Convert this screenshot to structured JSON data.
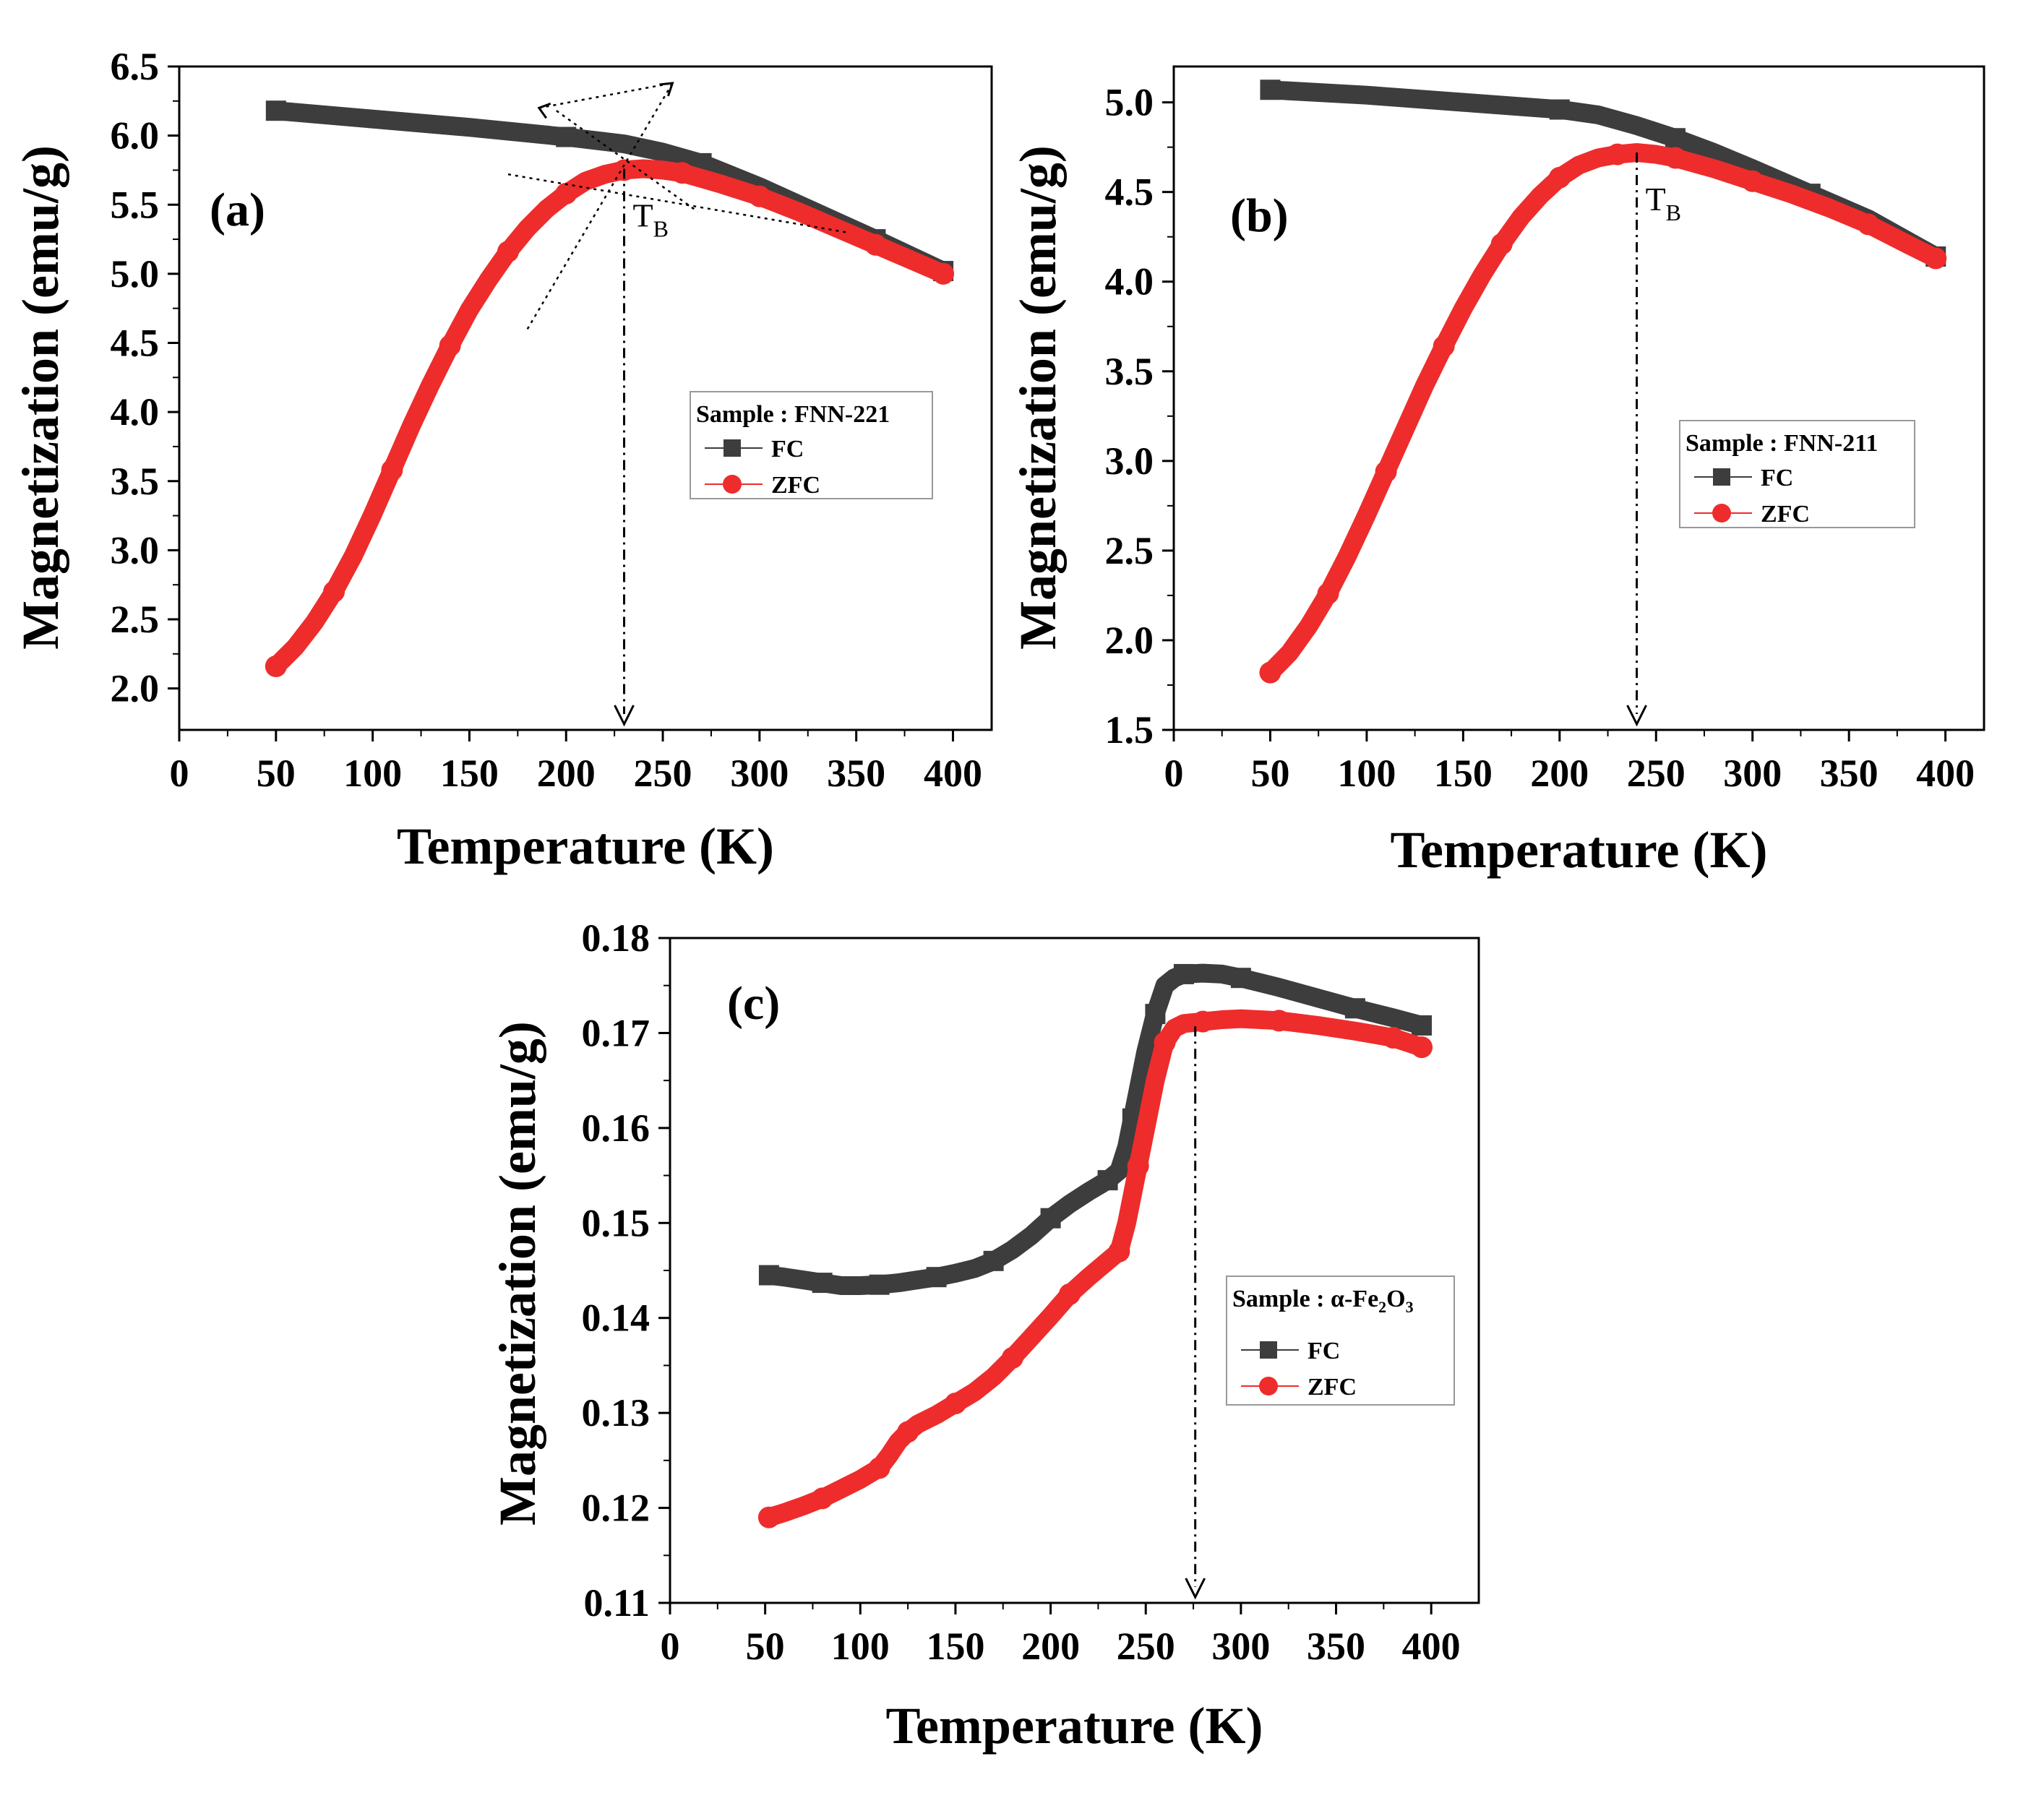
{
  "chart_data": [
    {
      "type": "scatter",
      "panel_label": "(a)",
      "xlabel": "Temperature (K)",
      "ylabel": "Magnetization (emu/g)",
      "xlim": [
        0,
        420
      ],
      "ylim": [
        1.7,
        6.5
      ],
      "xticks": [
        0,
        50,
        100,
        150,
        200,
        250,
        300,
        350,
        400
      ],
      "yticks": [
        2.0,
        2.5,
        3.0,
        3.5,
        4.0,
        4.5,
        5.0,
        5.5,
        6.0,
        6.5
      ],
      "ytick_decimals": 1,
      "legend": {
        "title": "Sample : FNN-221",
        "entries": [
          "FC",
          "ZFC"
        ],
        "position": "center-right"
      },
      "annotation": {
        "text_main": "T",
        "text_sub": "B",
        "x": 230
      },
      "series": [
        {
          "name": "FC",
          "color": "#3d3d3d",
          "marker": "square",
          "x": [
            50,
            100,
            150,
            200,
            230,
            250,
            270,
            300,
            330,
            360,
            395
          ],
          "y": [
            6.18,
            6.12,
            6.06,
            5.99,
            5.94,
            5.88,
            5.8,
            5.63,
            5.44,
            5.25,
            5.02
          ]
        },
        {
          "name": "ZFC",
          "color": "#ee2c2c",
          "marker": "circle",
          "x": [
            50,
            60,
            70,
            80,
            90,
            100,
            110,
            120,
            130,
            140,
            150,
            160,
            170,
            180,
            190,
            200,
            210,
            220,
            230,
            240,
            250,
            260,
            270,
            280,
            300,
            320,
            340,
            360,
            380,
            395
          ],
          "y": [
            2.16,
            2.3,
            2.48,
            2.7,
            2.96,
            3.26,
            3.58,
            3.9,
            4.2,
            4.48,
            4.74,
            4.96,
            5.16,
            5.33,
            5.47,
            5.58,
            5.67,
            5.72,
            5.75,
            5.76,
            5.75,
            5.73,
            5.69,
            5.65,
            5.56,
            5.45,
            5.33,
            5.21,
            5.09,
            5.0
          ]
        }
      ]
    },
    {
      "type": "scatter",
      "panel_label": "(b)",
      "xlabel": "Temperature (K)",
      "ylabel": "Magnetization (emu/g)",
      "xlim": [
        0,
        420
      ],
      "ylim": [
        1.5,
        5.2
      ],
      "xticks": [
        0,
        50,
        100,
        150,
        200,
        250,
        300,
        350,
        400
      ],
      "yticks": [
        1.5,
        2.0,
        2.5,
        3.0,
        3.5,
        4.0,
        4.5,
        5.0
      ],
      "ytick_decimals": 1,
      "legend": {
        "title": "Sample : FNN-211",
        "entries": [
          "FC",
          "ZFC"
        ],
        "position": "center-right"
      },
      "annotation": {
        "text_main": "T",
        "text_sub": "B",
        "x": 240
      },
      "series": [
        {
          "name": "FC",
          "color": "#3d3d3d",
          "marker": "square",
          "x": [
            50,
            100,
            150,
            200,
            220,
            240,
            260,
            280,
            300,
            330,
            360,
            395
          ],
          "y": [
            5.07,
            5.04,
            5.0,
            4.96,
            4.93,
            4.87,
            4.8,
            4.72,
            4.63,
            4.49,
            4.35,
            4.14
          ]
        },
        {
          "name": "ZFC",
          "color": "#ee2c2c",
          "marker": "circle",
          "x": [
            50,
            60,
            70,
            80,
            90,
            100,
            110,
            120,
            130,
            140,
            150,
            160,
            170,
            180,
            190,
            200,
            210,
            220,
            230,
            240,
            250,
            260,
            270,
            280,
            300,
            320,
            340,
            360,
            380,
            395
          ],
          "y": [
            1.82,
            1.93,
            2.08,
            2.26,
            2.47,
            2.7,
            2.94,
            3.18,
            3.42,
            3.64,
            3.85,
            4.04,
            4.21,
            4.36,
            4.48,
            4.58,
            4.65,
            4.69,
            4.71,
            4.72,
            4.71,
            4.69,
            4.66,
            4.63,
            4.56,
            4.49,
            4.41,
            4.32,
            4.21,
            4.13
          ]
        }
      ]
    },
    {
      "type": "scatter",
      "panel_label": "(c)",
      "xlabel": "Temperature (K)",
      "ylabel": "Magnetization (emu/g)",
      "xlim": [
        0,
        425
      ],
      "ylim": [
        0.11,
        0.18
      ],
      "xticks": [
        0,
        50,
        100,
        150,
        200,
        250,
        300,
        350,
        400
      ],
      "yticks": [
        0.11,
        0.12,
        0.13,
        0.14,
        0.15,
        0.16,
        0.17,
        0.18
      ],
      "ytick_decimals": 2,
      "legend": {
        "title_main": "Sample : α-Fe",
        "title_sub1": "2",
        "title_mid": "O",
        "title_sub2": "3",
        "entries": [
          "FC",
          "ZFC"
        ],
        "position": "center-right"
      },
      "annotation": {
        "x": 276
      },
      "series": [
        {
          "name": "FC",
          "color": "#3d3d3d",
          "marker": "square",
          "x": [
            52,
            60,
            70,
            80,
            90,
            100,
            110,
            120,
            130,
            140,
            150,
            160,
            170,
            180,
            190,
            200,
            210,
            220,
            230,
            236,
            240,
            243,
            246,
            250,
            255,
            260,
            265,
            270,
            280,
            290,
            300,
            320,
            340,
            360,
            380,
            395
          ],
          "y": [
            0.1445,
            0.1443,
            0.144,
            0.1437,
            0.1434,
            0.1434,
            0.1435,
            0.1437,
            0.144,
            0.1443,
            0.1447,
            0.1452,
            0.146,
            0.1472,
            0.1487,
            0.1505,
            0.152,
            0.1533,
            0.1545,
            0.1555,
            0.158,
            0.161,
            0.164,
            0.168,
            0.172,
            0.175,
            0.1758,
            0.1762,
            0.1763,
            0.1762,
            0.1758,
            0.1748,
            0.1737,
            0.1726,
            0.1716,
            0.1708
          ]
        },
        {
          "name": "ZFC",
          "color": "#ee2c2c",
          "marker": "circle",
          "x": [
            52,
            60,
            70,
            80,
            90,
            100,
            110,
            115,
            120,
            125,
            130,
            140,
            150,
            160,
            170,
            180,
            190,
            200,
            210,
            220,
            230,
            236,
            240,
            243,
            246,
            250,
            255,
            260,
            265,
            270,
            280,
            290,
            300,
            320,
            340,
            360,
            380,
            395
          ],
          "y": [
            0.119,
            0.1195,
            0.1202,
            0.121,
            0.122,
            0.123,
            0.1242,
            0.1255,
            0.127,
            0.128,
            0.1288,
            0.1298,
            0.131,
            0.1322,
            0.1338,
            0.1358,
            0.138,
            0.1402,
            0.1425,
            0.1443,
            0.146,
            0.147,
            0.15,
            0.153,
            0.156,
            0.16,
            0.165,
            0.169,
            0.1705,
            0.171,
            0.1712,
            0.1714,
            0.1715,
            0.1713,
            0.1708,
            0.1702,
            0.1695,
            0.1685
          ]
        }
      ]
    }
  ]
}
